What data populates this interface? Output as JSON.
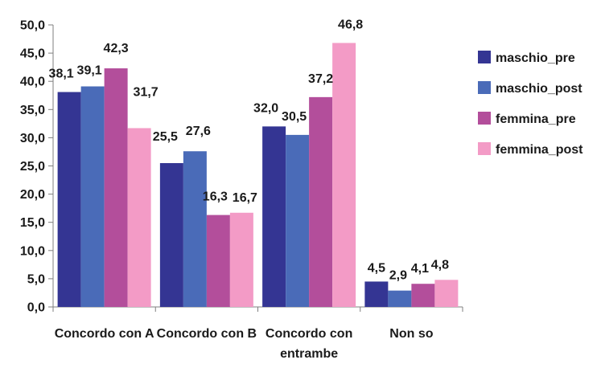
{
  "chart_data": {
    "type": "bar",
    "title": "",
    "xlabel": "",
    "ylabel": "",
    "ylim": [
      0,
      50
    ],
    "y_ticks": [
      "0,0",
      "5,0",
      "10,0",
      "15,0",
      "20,0",
      "25,0",
      "30,0",
      "35,0",
      "40,0",
      "45,0",
      "50,0"
    ],
    "y_tick_values": [
      0,
      5,
      10,
      15,
      20,
      25,
      30,
      35,
      40,
      45,
      50
    ],
    "categories": [
      [
        "Concordo con A"
      ],
      [
        "Concordo con B"
      ],
      [
        "Concordo con",
        "entrambe"
      ],
      [
        "Non so"
      ]
    ],
    "series": [
      {
        "name": "maschio_pre",
        "color": "#343593",
        "values": [
          38.1,
          25.5,
          32.0,
          4.5
        ],
        "labels": [
          "38,1",
          "25,5",
          "32,0",
          "4,5"
        ]
      },
      {
        "name": "maschio_post",
        "color": "#4a6bb8",
        "values": [
          39.1,
          27.6,
          30.5,
          2.9
        ],
        "labels": [
          "39,1",
          "27,6",
          "30,5",
          "2,9"
        ]
      },
      {
        "name": "femmina_pre",
        "color": "#b34e9b",
        "values": [
          42.3,
          16.3,
          37.2,
          4.1
        ],
        "labels": [
          "42,3",
          "16,3",
          "37,2",
          "4,1"
        ]
      },
      {
        "name": "femmina_post",
        "color": "#f39bc6",
        "values": [
          31.7,
          16.7,
          46.8,
          4.8
        ],
        "labels": [
          "31,7",
          "16,7",
          "46,8",
          "4,8"
        ]
      }
    ],
    "grid": false,
    "legend_position": "right"
  }
}
